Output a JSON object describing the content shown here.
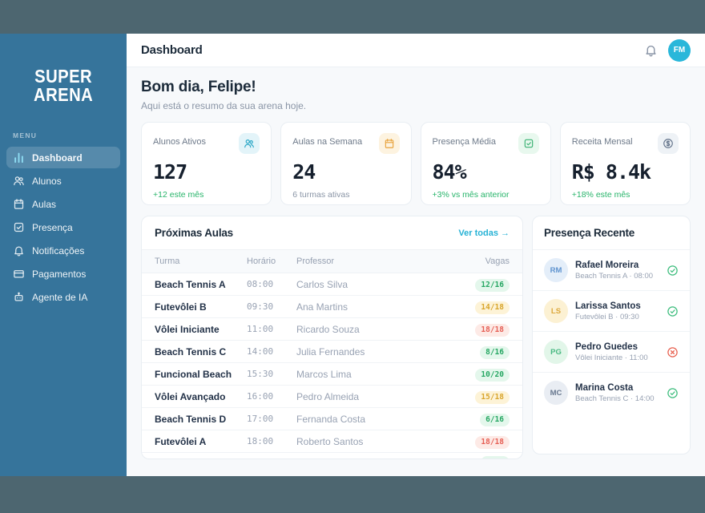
{
  "colors": {
    "frame": "#4d6670",
    "sidebar": "#36749b",
    "accent_cyan": "#29b7da",
    "positive_green": "#27b46a",
    "warning_amber": "#d9a62e",
    "danger_red": "#e66056",
    "heading_navy": "#1c2b3a"
  },
  "sidebar": {
    "logo_line1": "SUPER",
    "logo_line2": "ARENA",
    "menu_label": "MENU",
    "items": [
      {
        "name": "sidebar-item-dashboard",
        "label": "Dashboard",
        "icon": "bar-chart-icon",
        "state": "active"
      },
      {
        "name": "sidebar-item-alunos",
        "label": "Alunos",
        "icon": "users-icon",
        "state": ""
      },
      {
        "name": "sidebar-item-aulas",
        "label": "Aulas",
        "icon": "calendar-icon",
        "state": ""
      },
      {
        "name": "sidebar-item-presenca",
        "label": "Presença",
        "icon": "check-square-icon",
        "state": ""
      },
      {
        "name": "sidebar-item-notificacoes",
        "label": "Notificações",
        "icon": "bell-icon",
        "state": ""
      },
      {
        "name": "sidebar-item-pagamentos",
        "label": "Pagamentos",
        "icon": "credit-card-icon",
        "state": ""
      },
      {
        "name": "sidebar-item-agente-de-ia",
        "label": "Agente de IA",
        "icon": "bot-icon",
        "state": ""
      }
    ]
  },
  "header": {
    "title": "Dashboard",
    "avatar_initials": "FM"
  },
  "greeting": {
    "title": "Bom dia, Felipe!",
    "subtitle": "Aqui está o resumo da sua arena hoje."
  },
  "stats": [
    {
      "label": "Alunos Ativos",
      "value": "127",
      "sub": "+12 este mês",
      "sub_style": "positive",
      "icon": "users-icon",
      "icon_color": "#2aa7c7",
      "icon_bg": "#e3f4f9"
    },
    {
      "label": "Aulas na Semana",
      "value": "24",
      "sub": "6 turmas ativas",
      "sub_style": "muted",
      "icon": "calendar-icon",
      "icon_color": "#e8a33d",
      "icon_bg": "#fdf3e0"
    },
    {
      "label": "Presença Média",
      "value": "84%",
      "sub": "+3% vs mês anterior",
      "sub_style": "positive",
      "icon": "check-square-icon",
      "icon_color": "#3bb273",
      "icon_bg": "#e8f8ee"
    },
    {
      "label": "Receita Mensal",
      "value": "R$ 8.4k",
      "sub": "+18% este mês",
      "sub_style": "positive",
      "icon": "dollar-circle-icon",
      "icon_color": "#64748b",
      "icon_bg": "#eef2f6"
    }
  ],
  "classes_table": {
    "title": "Próximas Aulas",
    "link": "Ver todas →",
    "columns": {
      "turma": "Turma",
      "horario": "Horário",
      "professor": "Professor",
      "vagas": "Vagas"
    },
    "rows": [
      {
        "turma": "Beach Tennis A",
        "horario": "08:00",
        "professor": "Carlos Silva",
        "vagas": "12/16",
        "status": "green"
      },
      {
        "turma": "Futevôlei B",
        "horario": "09:30",
        "professor": "Ana Martins",
        "vagas": "14/18",
        "status": "yellow"
      },
      {
        "turma": "Vôlei Iniciante",
        "horario": "11:00",
        "professor": "Ricardo Souza",
        "vagas": "18/18",
        "status": "red"
      },
      {
        "turma": "Beach Tennis C",
        "horario": "14:00",
        "professor": "Julia Fernandes",
        "vagas": "8/16",
        "status": "green"
      },
      {
        "turma": "Funcional Beach",
        "horario": "15:30",
        "professor": "Marcos Lima",
        "vagas": "10/20",
        "status": "green"
      },
      {
        "turma": "Vôlei Avançado",
        "horario": "16:00",
        "professor": "Pedro Almeida",
        "vagas": "15/18",
        "status": "yellow"
      },
      {
        "turma": "Beach Tennis D",
        "horario": "17:00",
        "professor": "Fernanda Costa",
        "vagas": "6/16",
        "status": "green"
      },
      {
        "turma": "Futevôlei A",
        "horario": "18:00",
        "professor": "Roberto Santos",
        "vagas": "18/18",
        "status": "red"
      }
    ],
    "partial_row": {
      "turma": "",
      "horario": "",
      "professor": "",
      "vagas": "",
      "status": "green"
    }
  },
  "attendance": {
    "title": "Presença Recente",
    "items": [
      {
        "initials": "RM",
        "name": "Rafael Moreira",
        "detail": "Beach Tennis A · 08:00",
        "status": "present",
        "status_icon": "check-circle-icon",
        "avatar_bg": "#e4eef9",
        "avatar_color": "#5e93cf"
      },
      {
        "initials": "LS",
        "name": "Larissa Santos",
        "detail": "Futevôlei B · 09:30",
        "status": "present",
        "status_icon": "check-circle-icon",
        "avatar_bg": "#fcf1d3",
        "avatar_color": "#dca83c"
      },
      {
        "initials": "PG",
        "name": "Pedro Guedes",
        "detail": "Vôlei Iniciante · 11:00",
        "status": "absent",
        "status_icon": "x-circle-icon",
        "avatar_bg": "#e2f6e9",
        "avatar_color": "#47b881"
      },
      {
        "initials": "MC",
        "name": "Marina Costa",
        "detail": "Beach Tennis C · 14:00",
        "status": "present",
        "status_icon": "check-circle-icon",
        "avatar_bg": "#e9edf3",
        "avatar_color": "#68788f"
      }
    ]
  }
}
